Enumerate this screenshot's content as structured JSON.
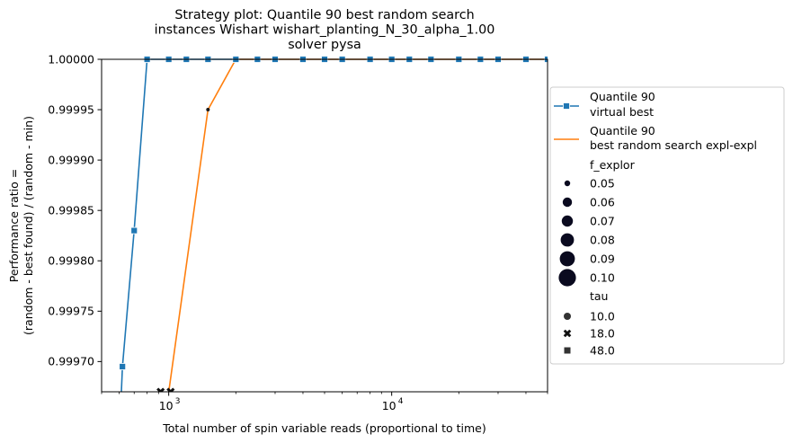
{
  "chart_data": {
    "type": "line",
    "title": [
      "Strategy plot: Quantile 90 best random search",
      "instances Wishart wishart_planting_N_30_alpha_1.00",
      "solver pysa"
    ],
    "xlabel": "Total number of spin variable reads (proportional to time)",
    "ylabel": [
      "Performance ratio =",
      "(random - best found) / (random - min)"
    ],
    "xscale": "log",
    "xlim": [
      500,
      50000
    ],
    "ylim": [
      0.99967,
      1.0
    ],
    "x_ticks": [
      {
        "value": 1000,
        "label": "10",
        "exp": "3"
      },
      {
        "value": 10000,
        "label": "10",
        "exp": "4"
      }
    ],
    "y_ticks": [
      {
        "value": 0.9997,
        "label": "0.99970"
      },
      {
        "value": 0.99975,
        "label": "0.99975"
      },
      {
        "value": 0.9998,
        "label": "0.99980"
      },
      {
        "value": 0.99985,
        "label": "0.99985"
      },
      {
        "value": 0.9999,
        "label": "0.99990"
      },
      {
        "value": 0.99995,
        "label": "0.99995"
      },
      {
        "value": 1.0,
        "label": "1.00000"
      }
    ],
    "series": [
      {
        "name": "Quantile 90\n virtual best",
        "color": "#1f77b4",
        "marker": "square",
        "x": [
          600,
          620,
          700,
          800,
          1000,
          1200,
          1500,
          2000,
          2500,
          3000,
          4000,
          5000,
          6000,
          8000,
          10000,
          12000,
          15000,
          20000,
          25000,
          30000,
          40000,
          50000
        ],
        "y": [
          0.99962,
          0.999695,
          0.99983,
          1.0,
          1.0,
          1.0,
          1.0,
          1.0,
          1.0,
          1.0,
          1.0,
          1.0,
          1.0,
          1.0,
          1.0,
          1.0,
          1.0,
          1.0,
          1.0,
          1.0,
          1.0,
          1.0
        ]
      },
      {
        "name": "Quantile 90\n best random search expl-expl",
        "color": "#ff7f0e",
        "marker": "none",
        "x": [
          1000,
          1500,
          2000,
          3000,
          5000,
          10000,
          20000,
          50000
        ],
        "y": [
          0.99967,
          0.99995,
          1.0,
          1.0,
          1.0,
          1.0,
          1.0,
          1.0
        ]
      }
    ],
    "scatter_points": [
      {
        "x": 920,
        "y": 0.99967,
        "marker": "x"
      },
      {
        "x": 1020,
        "y": 0.99967,
        "marker": "x"
      },
      {
        "x": 1500,
        "y": 0.99995,
        "marker": "circle"
      },
      {
        "x": 2000,
        "y": 1.0,
        "marker": "circle"
      },
      {
        "x": 5000,
        "y": 1.0,
        "marker": "circle"
      },
      {
        "x": 10000,
        "y": 1.0,
        "marker": "circle"
      }
    ],
    "legend": {
      "placement": "right",
      "line_entries": [
        {
          "label": [
            "Quantile 90",
            " virtual best"
          ],
          "color": "#1f77b4",
          "marker": "square"
        },
        {
          "label": [
            "Quantile 90",
            " best random search expl-expl"
          ],
          "color": "#ff7f0e",
          "marker": "none"
        }
      ],
      "size_title": "f_explor",
      "size_entries": [
        {
          "label": "0.05",
          "r": 3.2
        },
        {
          "label": "0.06",
          "r": 5.2
        },
        {
          "label": "0.07",
          "r": 6.2
        },
        {
          "label": "0.08",
          "r": 7.4
        },
        {
          "label": "0.09",
          "r": 8.4
        },
        {
          "label": "0.10",
          "r": 9.6
        }
      ],
      "style_title": "tau",
      "style_entries": [
        {
          "label": "10.0",
          "marker": "circle"
        },
        {
          "label": "18.0",
          "marker": "x"
        },
        {
          "label": "48.0",
          "marker": "square"
        }
      ]
    }
  }
}
